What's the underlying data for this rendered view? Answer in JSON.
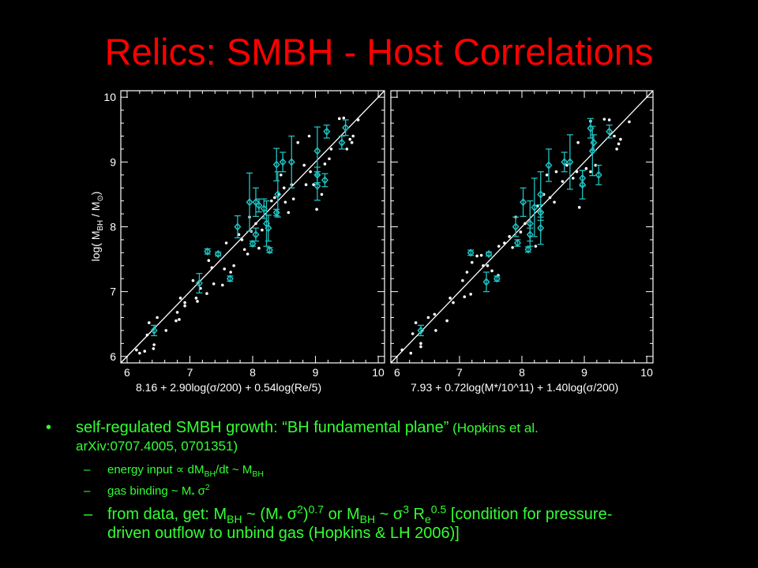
{
  "title": "Relics: SMBH - Host Correlations",
  "colors": {
    "title": "#ff0000",
    "text": "#33ff33",
    "points": "#ffffff",
    "observed": "#20c0c0",
    "fit_line": "#ffffff"
  },
  "chart_data": [
    {
      "type": "scatter",
      "xlabel": "8.16 + 2.90log(σ/200) + 0.54log(Re/5)",
      "xlabel_parts": {
        "main": "8.16 + 2.90log(σ/200) + 0.54log(R",
        "sub": "e",
        "tail": "/5)"
      },
      "ylabel": "log( MBH / M⊙)",
      "ylabel_parts": {
        "pre": "log( M",
        "sub": "BH",
        "post": " / M",
        "sun": "⊙",
        "end": ")"
      },
      "xlim": [
        5.9,
        10.1
      ],
      "ylim": [
        5.9,
        10.1
      ],
      "xticks": [
        "6",
        "7",
        "8",
        "9",
        "10"
      ],
      "yticks": [
        "6",
        "7",
        "8",
        "9",
        "10"
      ],
      "fit_line": [
        [
          5.9,
          5.9
        ],
        [
          10.1,
          10.1
        ]
      ],
      "simulation_points": [
        [
          6.15,
          6.1
        ],
        [
          6.2,
          6.05
        ],
        [
          6.28,
          6.08
        ],
        [
          6.32,
          6.33
        ],
        [
          6.35,
          6.52
        ],
        [
          6.42,
          6.12
        ],
        [
          6.43,
          6.18
        ],
        [
          6.48,
          6.6
        ],
        [
          6.62,
          6.4
        ],
        [
          6.78,
          6.55
        ],
        [
          6.8,
          6.68
        ],
        [
          6.83,
          6.57
        ],
        [
          6.85,
          6.9
        ],
        [
          6.92,
          6.78
        ],
        [
          6.92,
          6.83
        ],
        [
          7.05,
          7.17
        ],
        [
          7.1,
          6.9
        ],
        [
          7.12,
          6.85
        ],
        [
          7.17,
          7.05
        ],
        [
          7.27,
          6.97
        ],
        [
          7.3,
          7.48
        ],
        [
          7.35,
          7.37
        ],
        [
          7.38,
          7.12
        ],
        [
          7.52,
          7.1
        ],
        [
          7.55,
          7.35
        ],
        [
          7.58,
          7.75
        ],
        [
          7.65,
          7.3
        ],
        [
          7.7,
          7.4
        ],
        [
          7.78,
          7.88
        ],
        [
          7.83,
          7.8
        ],
        [
          7.87,
          7.65
        ],
        [
          7.92,
          7.58
        ],
        [
          7.95,
          8.15
        ],
        [
          7.98,
          7.93
        ],
        [
          8.05,
          8.05
        ],
        [
          8.1,
          7.67
        ],
        [
          8.15,
          7.95
        ],
        [
          8.3,
          8.4
        ],
        [
          8.35,
          8.45
        ],
        [
          8.42,
          8.5
        ],
        [
          8.45,
          8.8
        ],
        [
          8.5,
          8.6
        ],
        [
          8.52,
          8.38
        ],
        [
          8.57,
          8.22
        ],
        [
          8.62,
          8.65
        ],
        [
          8.65,
          8.43
        ],
        [
          8.72,
          9.3
        ],
        [
          8.82,
          8.95
        ],
        [
          8.85,
          8.65
        ],
        [
          8.9,
          9.4
        ],
        [
          8.92,
          8.85
        ],
        [
          8.97,
          8.65
        ],
        [
          9.02,
          8.27
        ],
        [
          9.1,
          8.5
        ],
        [
          9.15,
          8.97
        ],
        [
          9.22,
          9.05
        ],
        [
          9.25,
          9.2
        ],
        [
          9.38,
          9.67
        ],
        [
          9.45,
          9.68
        ],
        [
          9.5,
          9.2
        ],
        [
          9.55,
          9.35
        ],
        [
          9.58,
          9.3
        ],
        [
          9.6,
          9.4
        ],
        [
          9.68,
          9.65
        ]
      ],
      "observed_points": [
        [
          6.43,
          6.4,
          0.08
        ],
        [
          7.15,
          7.13,
          0.15
        ],
        [
          7.28,
          7.62,
          0.04
        ],
        [
          7.45,
          7.58,
          0.03
        ],
        [
          7.64,
          7.2,
          0.04
        ],
        [
          7.76,
          8.0,
          0.17
        ],
        [
          7.95,
          8.38,
          0.45
        ],
        [
          8.0,
          7.74,
          0.04
        ],
        [
          8.05,
          7.88,
          0.1
        ],
        [
          8.05,
          8.38,
          0.22
        ],
        [
          8.1,
          8.33,
          0.1
        ],
        [
          8.18,
          8.28,
          0.15
        ],
        [
          8.22,
          8.05,
          0.35
        ],
        [
          8.25,
          7.98,
          0.2
        ],
        [
          8.27,
          7.64,
          0.04
        ],
        [
          8.38,
          8.22,
          0.05
        ],
        [
          8.38,
          8.96,
          0.25
        ],
        [
          8.4,
          8.5,
          0.35
        ],
        [
          8.48,
          9.0,
          0.15
        ],
        [
          8.62,
          9.0,
          0.4
        ],
        [
          9.03,
          9.17,
          0.37
        ],
        [
          9.03,
          8.8,
          0.12
        ],
        [
          9.03,
          8.63,
          0.22
        ],
        [
          9.15,
          8.72,
          0.1
        ],
        [
          9.18,
          9.47,
          0.1
        ],
        [
          9.42,
          9.3,
          0.1
        ],
        [
          9.48,
          9.53,
          0.12
        ]
      ]
    },
    {
      "type": "scatter",
      "xlabel": "7.93 + 0.72log(M*/10^11) + 1.40log(σ/200)",
      "xlabel_parts": {
        "main": "7.93 + 0.72log(M",
        "sub": "*",
        "mid": "/10",
        "sup": "11",
        "tail": ") + 1.40log(σ/200)"
      },
      "xlim": [
        5.9,
        10.1
      ],
      "ylim": [
        5.9,
        10.1
      ],
      "xticks": [
        "6",
        "7",
        "8",
        "9",
        "10"
      ],
      "fit_line": [
        [
          5.9,
          5.9
        ],
        [
          10.1,
          10.1
        ]
      ],
      "simulation_points": [
        [
          6.08,
          6.1
        ],
        [
          6.22,
          6.05
        ],
        [
          6.25,
          6.35
        ],
        [
          6.3,
          6.52
        ],
        [
          6.38,
          6.15
        ],
        [
          6.38,
          6.2
        ],
        [
          6.5,
          6.6
        ],
        [
          6.6,
          6.65
        ],
        [
          6.62,
          6.4
        ],
        [
          6.8,
          6.55
        ],
        [
          6.85,
          6.9
        ],
        [
          6.9,
          6.83
        ],
        [
          7.05,
          7.17
        ],
        [
          7.08,
          6.92
        ],
        [
          7.12,
          7.3
        ],
        [
          7.18,
          6.96
        ],
        [
          7.2,
          7.45
        ],
        [
          7.28,
          7.55
        ],
        [
          7.35,
          7.56
        ],
        [
          7.38,
          7.4
        ],
        [
          7.45,
          7.4
        ],
        [
          7.52,
          7.32
        ],
        [
          7.62,
          7.25
        ],
        [
          7.63,
          7.7
        ],
        [
          7.72,
          7.75
        ],
        [
          7.8,
          7.85
        ],
        [
          7.85,
          7.68
        ],
        [
          7.9,
          8.15
        ],
        [
          7.98,
          7.92
        ],
        [
          8.05,
          8.05
        ],
        [
          8.22,
          7.7
        ],
        [
          8.25,
          8.32
        ],
        [
          8.35,
          8.5
        ],
        [
          8.4,
          8.8
        ],
        [
          8.45,
          8.45
        ],
        [
          8.52,
          8.38
        ],
        [
          8.55,
          8.85
        ],
        [
          8.65,
          8.7
        ],
        [
          8.72,
          8.95
        ],
        [
          8.82,
          8.75
        ],
        [
          8.88,
          8.85
        ],
        [
          8.9,
          9.3
        ],
        [
          8.92,
          8.3
        ],
        [
          9.03,
          8.9
        ],
        [
          9.1,
          9.63
        ],
        [
          9.1,
          8.85
        ],
        [
          9.18,
          8.95
        ],
        [
          9.32,
          9.66
        ],
        [
          9.4,
          9.65
        ],
        [
          9.48,
          9.4
        ],
        [
          9.52,
          9.2
        ],
        [
          9.55,
          9.28
        ],
        [
          9.58,
          9.35
        ],
        [
          9.72,
          9.62
        ]
      ],
      "observed_points": [
        [
          6.38,
          6.4,
          0.08
        ],
        [
          7.18,
          7.6,
          0.04
        ],
        [
          7.47,
          7.58,
          0.03
        ],
        [
          7.43,
          7.15,
          0.15
        ],
        [
          7.6,
          7.2,
          0.04
        ],
        [
          7.9,
          8.0,
          0.15
        ],
        [
          7.93,
          7.75,
          0.05
        ],
        [
          8.02,
          8.38,
          0.22
        ],
        [
          8.1,
          7.65,
          0.04
        ],
        [
          8.13,
          7.88,
          0.1
        ],
        [
          8.13,
          8.05,
          0.35
        ],
        [
          8.2,
          8.3,
          0.45
        ],
        [
          8.3,
          7.98,
          0.25
        ],
        [
          8.3,
          8.22,
          0.12
        ],
        [
          8.3,
          8.5,
          0.35
        ],
        [
          8.43,
          8.95,
          0.25
        ],
        [
          8.68,
          9.0,
          0.15
        ],
        [
          8.77,
          9.0,
          0.42
        ],
        [
          8.97,
          8.65,
          0.22
        ],
        [
          8.97,
          8.75,
          0.12
        ],
        [
          9.1,
          9.52,
          0.15
        ],
        [
          9.13,
          9.17,
          0.38
        ],
        [
          9.15,
          9.3,
          0.12
        ],
        [
          9.23,
          8.8,
          0.15
        ],
        [
          9.4,
          9.47,
          0.1
        ]
      ]
    }
  ],
  "bullets": {
    "main": {
      "marker": "•",
      "text": "self-regulated SMBH growth: “BH fundamental plane”",
      "ref1": " (Hopkins et al.",
      "ref2": "arXiv:0707.4005, 0701351)"
    },
    "sub1": {
      "dash": "–",
      "a": "energy input ∝ dM",
      "a_sub": "BH",
      "b": "/dt  ~  M",
      "b_sub": "BH"
    },
    "sub2": {
      "dash": "–",
      "a": "gas binding  ~  M",
      "a_sub": "*",
      "b": " σ",
      "b_sup": "2"
    },
    "sub3": {
      "dash": "–",
      "a": "from data, get: M",
      "a_sub": "BH",
      "b": " ~ (M",
      "b_sub": "*",
      "c": " σ",
      "c_sup": "2",
      "d": ")",
      "d_sup": "0.7",
      "e": " or   M",
      "e_sub": "BH",
      "f": " ~ σ",
      "f_sup": "3",
      "g": " R",
      "g_sub": "e",
      "g_sup": "0.5",
      "h": " [condition for pressure-",
      "line2": "driven outflow to unbind gas (Hopkins & LH 2006)]"
    }
  }
}
